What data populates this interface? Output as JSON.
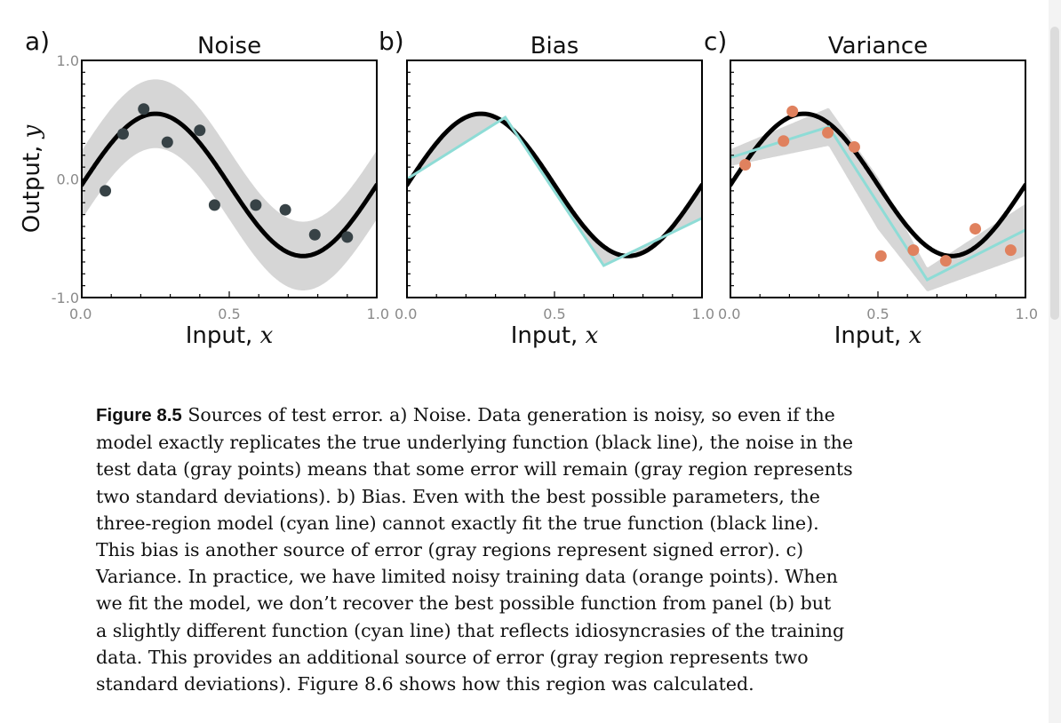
{
  "colors": {
    "band": "#d6d6d6",
    "true_line": "#000000",
    "model_line": "#8edcd6",
    "noise_points": "#374246",
    "train_points": "#e0815e",
    "frame": "#000000"
  },
  "axes": {
    "ylabel": "Output,",
    "ylabel_var": "y",
    "xlabel": "Input,",
    "xlabel_var": "x"
  },
  "chart_data": [
    {
      "type": "line",
      "letter": "a)",
      "title": "Noise",
      "xlim": [
        0,
        1
      ],
      "ylim": [
        -1,
        1
      ],
      "xticks": [
        "0.0",
        "0.5",
        "1.0"
      ],
      "yticks": [
        "1.0",
        "0.0",
        "-1.0"
      ],
      "band": {
        "kind": "offset",
        "half_width": 0.29
      },
      "true_function": "0.6*sin(2*pi*x) - 0.05 (approx. peak 0.55 at x=0.25, trough -0.55 at x=0.75)",
      "points": [
        {
          "x": 0.08,
          "y": -0.1
        },
        {
          "x": 0.14,
          "y": 0.38
        },
        {
          "x": 0.21,
          "y": 0.59
        },
        {
          "x": 0.29,
          "y": 0.31
        },
        {
          "x": 0.4,
          "y": 0.41
        },
        {
          "x": 0.45,
          "y": -0.22
        },
        {
          "x": 0.59,
          "y": -0.22
        },
        {
          "x": 0.69,
          "y": -0.26
        },
        {
          "x": 0.79,
          "y": -0.47
        },
        {
          "x": 0.9,
          "y": -0.49
        }
      ]
    },
    {
      "type": "line",
      "letter": "b)",
      "title": "Bias",
      "xlim": [
        0,
        1
      ],
      "ylim": [
        -1,
        1
      ],
      "xticks": [
        "0.0",
        "0.5",
        "1.0"
      ],
      "yticks": [],
      "band": {
        "kind": "between-true-and-model"
      },
      "model_line": [
        {
          "x": 0.0,
          "y": 0.0
        },
        {
          "x": 0.333,
          "y": 0.52
        },
        {
          "x": 0.667,
          "y": -0.73
        },
        {
          "x": 1.0,
          "y": -0.33
        }
      ]
    },
    {
      "type": "line",
      "letter": "c)",
      "title": "Variance",
      "xlim": [
        0,
        1
      ],
      "ylim": [
        -1,
        1
      ],
      "xticks": [
        "0.0",
        "0.5",
        "1.0"
      ],
      "yticks": [],
      "band": {
        "kind": "around-model",
        "half_widths": [
          {
            "x": 0.0,
            "h": 0.07
          },
          {
            "x": 0.333,
            "h": 0.16
          },
          {
            "x": 0.5,
            "h": 0.22
          },
          {
            "x": 0.667,
            "h": 0.1
          },
          {
            "x": 1.0,
            "h": 0.22
          }
        ]
      },
      "model_line": [
        {
          "x": 0.0,
          "y": 0.18
        },
        {
          "x": 0.333,
          "y": 0.44
        },
        {
          "x": 0.667,
          "y": -0.85
        },
        {
          "x": 1.0,
          "y": -0.43
        }
      ],
      "points": [
        {
          "x": 0.05,
          "y": 0.12
        },
        {
          "x": 0.18,
          "y": 0.32
        },
        {
          "x": 0.21,
          "y": 0.57
        },
        {
          "x": 0.33,
          "y": 0.39
        },
        {
          "x": 0.42,
          "y": 0.27
        },
        {
          "x": 0.51,
          "y": -0.65
        },
        {
          "x": 0.62,
          "y": -0.6
        },
        {
          "x": 0.73,
          "y": -0.69
        },
        {
          "x": 0.83,
          "y": -0.42
        },
        {
          "x": 0.95,
          "y": -0.6
        }
      ]
    }
  ],
  "caption": {
    "label": "Figure 8.5",
    "lines": [
      "Sources of test error. a) Noise. Data generation is noisy, so even if the",
      "model exactly replicates the true underlying function (black line), the noise in the",
      "test data (gray points) means that some error will remain (gray region represents",
      "two standard deviations). b) Bias. Even with the best possible parameters, the",
      "three-region model (cyan line) cannot exactly fit the true function (black line).",
      "This bias is another source of error (gray regions represent signed error). c)",
      "Variance. In practice, we have limited noisy training data (orange points). When",
      "we fit the model, we don’t recover the best possible function from panel (b) but",
      "a slightly different function (cyan line) that reflects idiosyncrasies of the training",
      "data. This provides an additional source of error (gray region represents two",
      "standard deviations). Figure 8.6 shows how this region was calculated."
    ]
  }
}
